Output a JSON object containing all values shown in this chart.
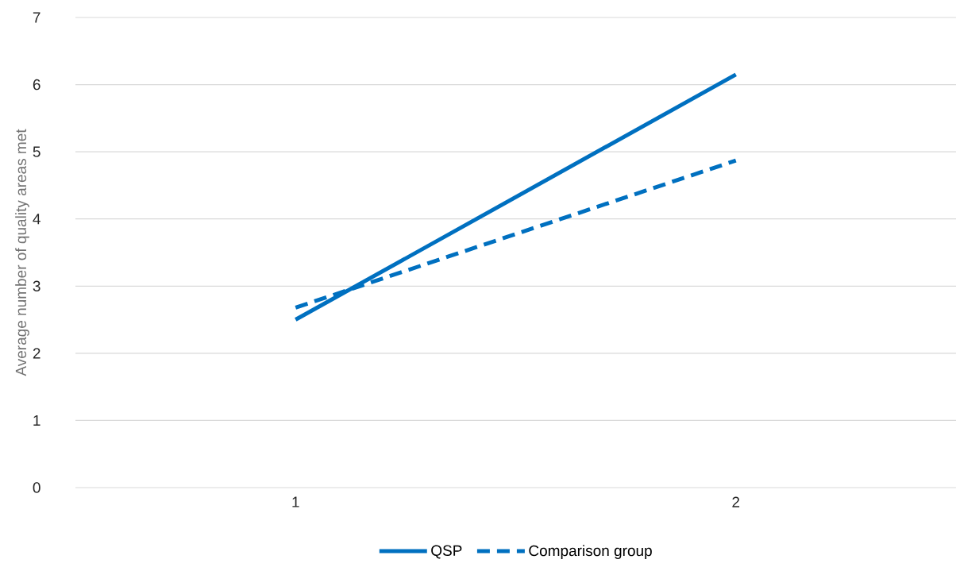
{
  "chart_data": {
    "type": "line",
    "ylabel": "Average number of quality areas met",
    "categories": [
      "1",
      "2"
    ],
    "series": [
      {
        "name": "QSP",
        "color": "#0070c0",
        "values": [
          2.5,
          6.15
        ],
        "line_style": "solid"
      },
      {
        "name": "Comparison group",
        "color": "#0070c0",
        "values": [
          2.68,
          4.87
        ],
        "line_style": "dashed"
      }
    ],
    "ylim": [
      0,
      7
    ],
    "yticks": [
      0,
      1,
      2,
      3,
      4,
      5,
      6,
      7
    ],
    "grid": "y",
    "legend": "bottom",
    "marker": "none"
  }
}
